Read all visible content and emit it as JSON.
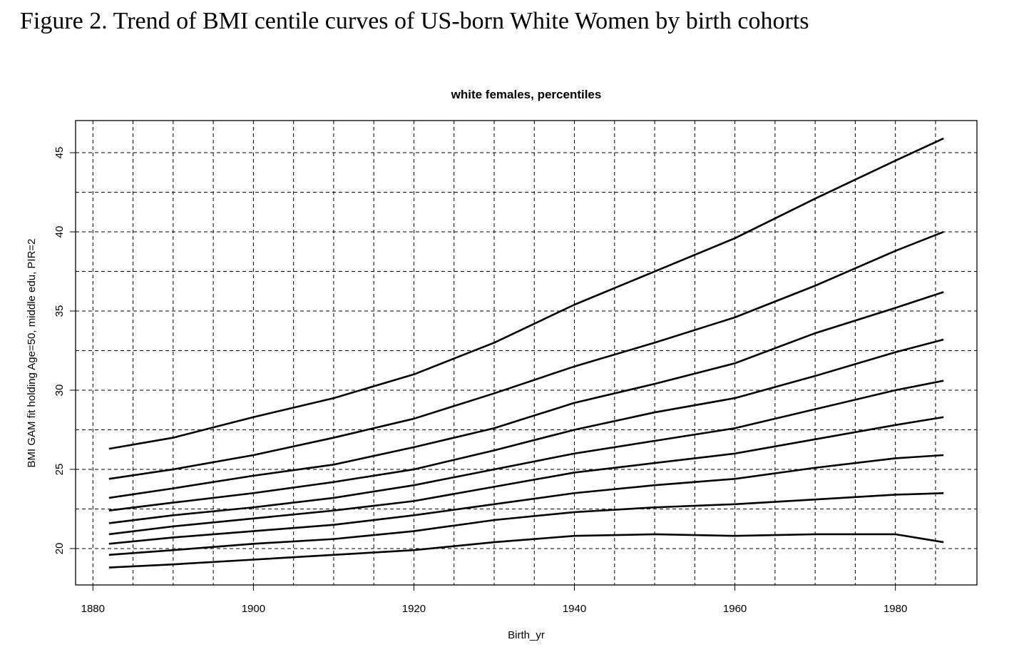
{
  "caption": "Figure 2. Trend of BMI centile curves of US-born White Women by birth cohorts",
  "chart_data": {
    "type": "line",
    "title": "white females, percentiles",
    "xlabel": "Birth_yr",
    "ylabel": "BMI GAM fit holding Age=50, middle edu, PIR=2",
    "x": [
      1882,
      1890,
      1900,
      1910,
      1920,
      1930,
      1940,
      1950,
      1960,
      1970,
      1980,
      1986
    ],
    "series": [
      {
        "color": "#000000",
        "values": [
          26.3,
          27.0,
          28.3,
          29.5,
          31.0,
          33.0,
          35.4,
          37.5,
          39.6,
          42.1,
          44.5,
          45.9
        ]
      },
      {
        "color": "#000000",
        "values": [
          24.4,
          25.0,
          25.9,
          27.0,
          28.2,
          29.8,
          31.5,
          33.0,
          34.6,
          36.6,
          38.8,
          40.0
        ]
      },
      {
        "color": "#000000",
        "values": [
          23.2,
          23.8,
          24.6,
          25.3,
          26.4,
          27.6,
          29.2,
          30.4,
          31.7,
          33.6,
          35.2,
          36.2
        ]
      },
      {
        "color": "#000000",
        "values": [
          22.4,
          22.9,
          23.5,
          24.2,
          25.0,
          26.2,
          27.5,
          28.6,
          29.5,
          30.9,
          32.4,
          33.2
        ]
      },
      {
        "color": "#000000",
        "values": [
          21.6,
          22.1,
          22.6,
          23.2,
          24.0,
          25.0,
          26.0,
          26.8,
          27.6,
          28.8,
          30.0,
          30.6
        ]
      },
      {
        "color": "#000000",
        "values": [
          20.9,
          21.4,
          21.9,
          22.4,
          23.0,
          23.9,
          24.8,
          25.4,
          26.0,
          26.9,
          27.8,
          28.3
        ]
      },
      {
        "color": "#000000",
        "values": [
          20.3,
          20.7,
          21.1,
          21.5,
          22.1,
          22.8,
          23.5,
          24.0,
          24.4,
          25.1,
          25.7,
          25.9
        ]
      },
      {
        "color": "#000000",
        "values": [
          19.6,
          19.9,
          20.3,
          20.6,
          21.1,
          21.8,
          22.3,
          22.6,
          22.8,
          23.1,
          23.4,
          23.5
        ]
      },
      {
        "color": "#000000",
        "values": [
          18.8,
          19.0,
          19.3,
          19.6,
          19.9,
          20.4,
          20.8,
          20.9,
          20.8,
          20.9,
          20.9,
          20.4
        ]
      }
    ],
    "xlim": [
      1877.84,
      1990.16
    ],
    "ylim": [
      17.7,
      47.03
    ],
    "xticks": [
      1880,
      1900,
      1920,
      1940,
      1960,
      1980
    ],
    "yticks": [
      20,
      25,
      30,
      35,
      40,
      45
    ],
    "xgrid": [
      1880,
      1885,
      1890,
      1895,
      1900,
      1905,
      1910,
      1915,
      1920,
      1925,
      1930,
      1935,
      1940,
      1945,
      1950,
      1955,
      1960,
      1965,
      1970,
      1975,
      1980,
      1985
    ],
    "ygrid": [
      20,
      22.5,
      25,
      27.5,
      30,
      32.5,
      35,
      37.5,
      40,
      42.5,
      45
    ],
    "grid": true
  }
}
